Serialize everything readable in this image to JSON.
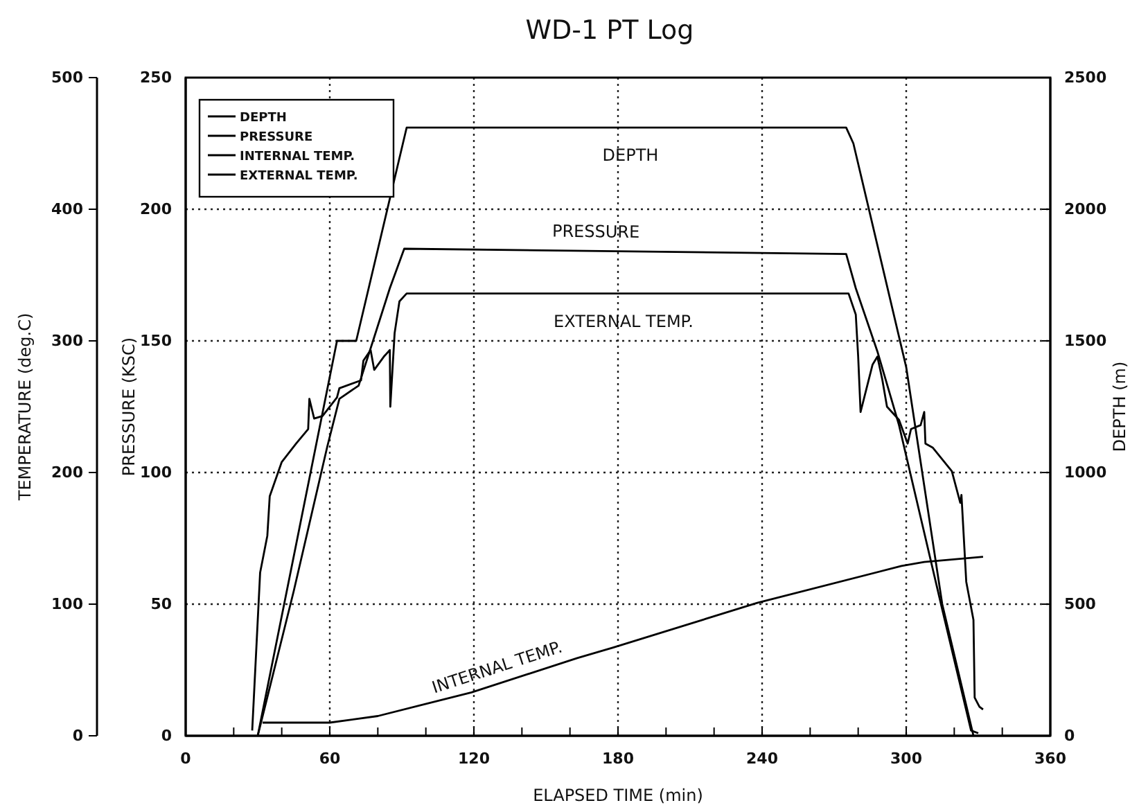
{
  "chart_data": {
    "type": "line",
    "title": "WD-1 PT Log",
    "xlabel": "ELAPSED TIME (min)",
    "ylabel": "PRESSURE (KSC)",
    "y2label": "DEPTH (m)",
    "y3label": "TEMPERATURE (deg.C)",
    "xlim": [
      0,
      360
    ],
    "xticks": [
      0,
      {
        "value": 20,
        "label": null
      },
      {
        "value": 40,
        "label": null
      },
      60,
      {
        "value": 80,
        "label": null
      },
      {
        "value": 100,
        "label": null
      },
      120,
      {
        "value": 140,
        "label": null
      },
      {
        "value": 160,
        "label": null
      },
      180,
      {
        "value": 200,
        "label": null
      },
      {
        "value": 220,
        "label": null
      },
      240,
      {
        "value": 260,
        "label": null
      },
      {
        "value": 280,
        "label": null
      },
      300,
      {
        "value": 320,
        "label": null
      },
      {
        "value": 340,
        "label": null
      },
      360
    ],
    "ylim": [
      0,
      250
    ],
    "yticks": [
      0,
      50,
      100,
      150,
      200,
      250
    ],
    "y2lim": [
      0,
      2500
    ],
    "y2ticks": [
      0,
      500,
      1000,
      1500,
      2000,
      2500
    ],
    "y3lim": [
      0,
      500
    ],
    "y3ticks": [
      0,
      100,
      200,
      300,
      400,
      500
    ],
    "grid": true,
    "legend": "top left",
    "series": [
      {
        "name": "DEPTH",
        "color": "#000000",
        "axis": "y2",
        "x": [
          30,
          63,
          71,
          92,
          275,
          278,
          300,
          315,
          328
        ],
        "values": [
          0,
          1500,
          1500,
          2310,
          2310,
          2250,
          1400,
          500,
          0
        ]
      },
      {
        "name": "PRESSURE",
        "color": "#000000",
        "axis": "y",
        "x": [
          30,
          45,
          59,
          64,
          72,
          78,
          85,
          91,
          275,
          279,
          288,
          297,
          315,
          327,
          330
        ],
        "values": [
          0,
          55,
          110,
          128,
          133,
          150,
          170,
          185,
          183,
          170,
          146,
          118,
          48,
          2,
          1
        ]
      },
      {
        "name": "INTERNAL TEMP.",
        "color": "#000000",
        "axis": "y3",
        "x": [
          32,
          60,
          80,
          119,
          163,
          178,
          238,
          298,
          307.5,
          332
        ],
        "values": [
          10,
          10,
          15,
          33,
          59,
          67,
          101,
          129,
          132,
          136
        ]
      },
      {
        "name": "EXTERNAL TEMP.",
        "color": "#000000",
        "axis": "y3",
        "x": [
          27.7,
          31,
          34,
          35,
          40,
          46,
          51,
          51.5,
          53.5,
          57,
          63,
          64,
          73,
          74,
          77,
          78.5,
          82.5,
          85,
          85.2,
          87,
          89,
          92,
          276,
          279,
          280,
          281,
          286,
          288,
          290,
          292,
          297,
          300.6,
          302,
          306,
          307.5,
          308,
          311,
          319,
          322.5,
          323,
          325,
          328,
          328.5,
          330.5,
          332
        ],
        "values": [
          4,
          124,
          152,
          182,
          208,
          222,
          233,
          256,
          241,
          243,
          257,
          264,
          270,
          285,
          293,
          278,
          288,
          293,
          250,
          306,
          330,
          336,
          336,
          320,
          288,
          246,
          282,
          288,
          271,
          250,
          240,
          222,
          233,
          236,
          246,
          222,
          219,
          201,
          177,
          183,
          117,
          88,
          29,
          22,
          20
        ]
      }
    ],
    "annotations": [
      "DEPTH",
      "PRESSURE",
      "INTERNAL TEMP.",
      "EXTERNAL TEMP."
    ]
  }
}
